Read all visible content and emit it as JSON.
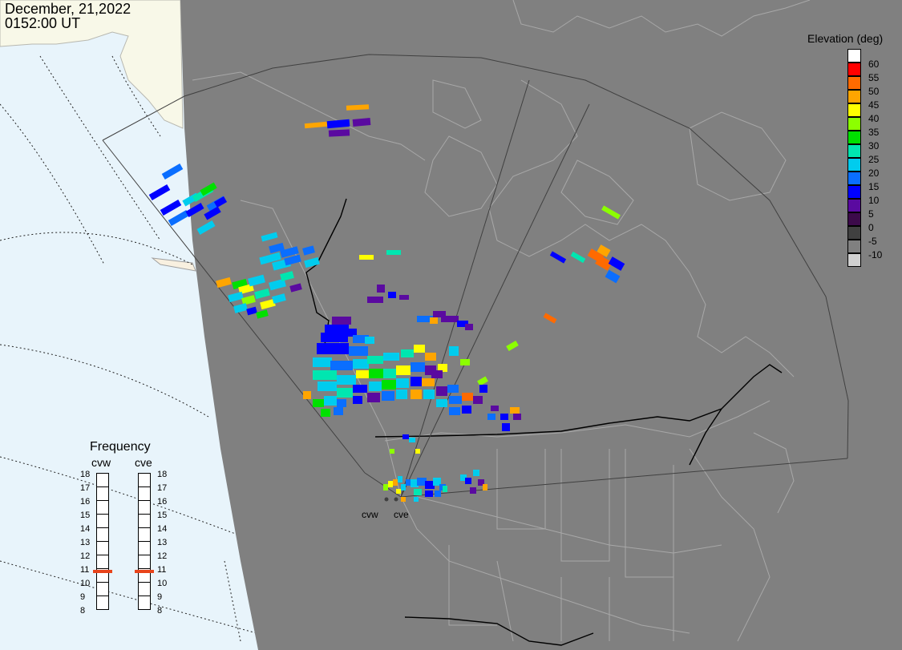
{
  "header": {
    "date": "December, 21,2022",
    "time": "0152:00 UT"
  },
  "legend": {
    "title": "Elevation (deg)",
    "items": [
      {
        "label": "60",
        "color": "#ffffff"
      },
      {
        "label": "55",
        "color": "#ff0000"
      },
      {
        "label": "50",
        "color": "#ff6a00"
      },
      {
        "label": "45",
        "color": "#ffa500"
      },
      {
        "label": "40",
        "color": "#ffff00"
      },
      {
        "label": "35",
        "color": "#8cff00"
      },
      {
        "label": "30",
        "color": "#00e000"
      },
      {
        "label": "25",
        "color": "#00e6b0"
      },
      {
        "label": "20",
        "color": "#00ccee"
      },
      {
        "label": "15",
        "color": "#0a6eff"
      },
      {
        "label": "10",
        "color": "#0000ff"
      },
      {
        "label": "5",
        "color": "#5a0aa0"
      },
      {
        "label": "0",
        "color": "#3c0a4a"
      },
      {
        "label": "-5",
        "color": "#404040"
      },
      {
        "label": "-10",
        "color": "#808080"
      },
      {
        "label": "",
        "color": "#d0d0d0"
      }
    ]
  },
  "frequency": {
    "title": "Frequency",
    "left_label": "cvw",
    "right_label": "cve",
    "ticks": [
      "18",
      "17",
      "16",
      "15",
      "14",
      "13",
      "12",
      "11",
      "10",
      "9",
      "8"
    ],
    "cvw_value": 10.75,
    "cve_value": 10.75,
    "marker_color": "#e8441b"
  },
  "sites": {
    "cvw": "cvw",
    "cve": "cve"
  },
  "colors": {
    "night": "#808080",
    "day_land": "#f8f8e8",
    "day_ocean": "#e8f4fb",
    "coast": "#b0b0b0",
    "fov": "#404040"
  }
}
